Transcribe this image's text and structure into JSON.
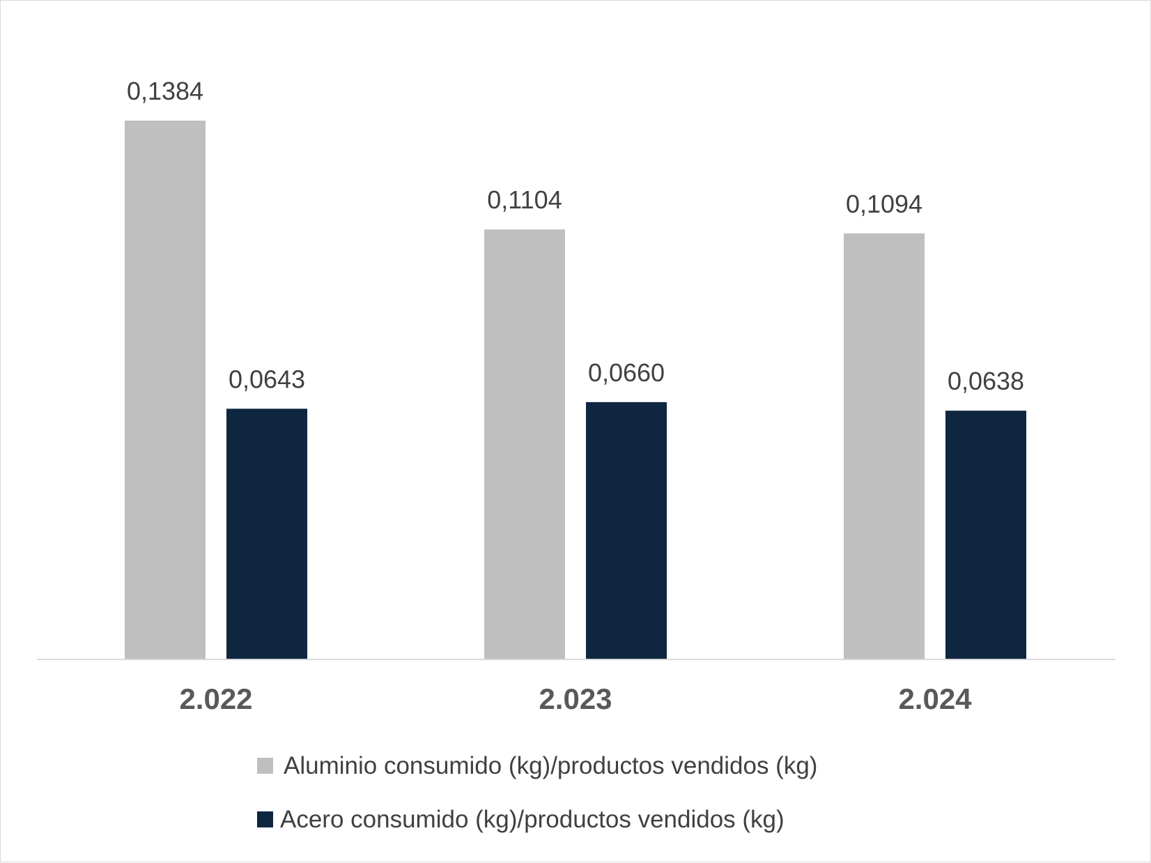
{
  "chart_data": {
    "type": "bar",
    "categories": [
      "2.022",
      "2.023",
      "2.024"
    ],
    "series": [
      {
        "name": " Aluminio consumido (kg)/productos vendidos (kg)",
        "values": [
          0.1384,
          0.1104,
          0.1094
        ],
        "labels": [
          "0,1384",
          "0,1104",
          "0,1094"
        ],
        "color": "#bfbfbf"
      },
      {
        "name": "Acero consumido (kg)/productos vendidos (kg)",
        "values": [
          0.0643,
          0.066,
          0.0638
        ],
        "labels": [
          "0,0643",
          "0,0660",
          "0,0638"
        ],
        "color": "#0e2640"
      }
    ],
    "title": "",
    "xlabel": "",
    "ylabel": "",
    "ylim": [
      0,
      0.16
    ],
    "grid": false,
    "legend": "bottom"
  }
}
